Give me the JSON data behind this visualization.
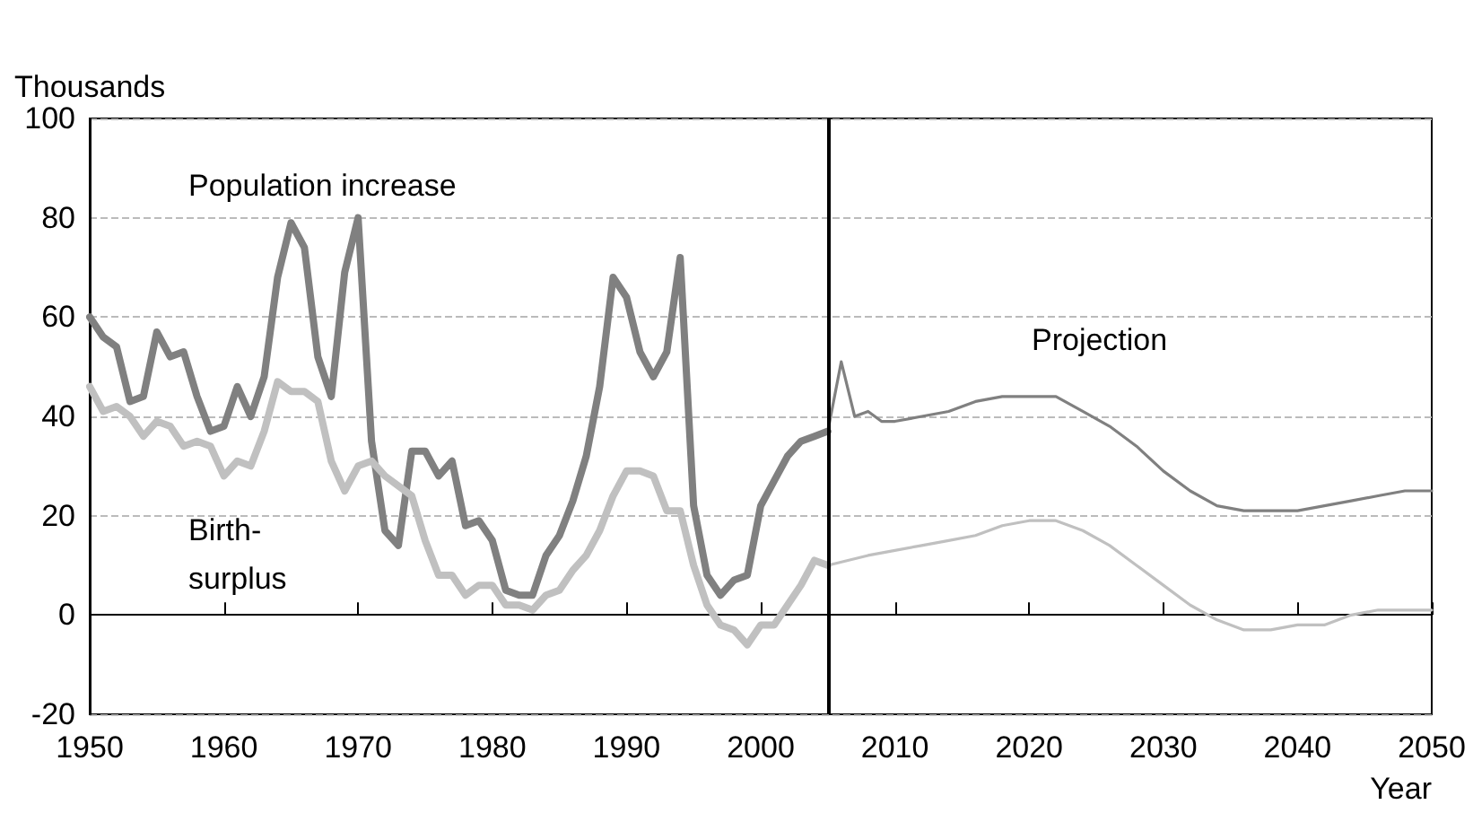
{
  "chart_data": {
    "type": "line",
    "ylabel": "Thousands",
    "xlabel": "Year",
    "series": [
      {
        "color": "#808080",
        "x": [
          1950,
          1951,
          1952,
          1953,
          1954,
          1955,
          1956,
          1957,
          1958,
          1959,
          1960,
          1961,
          1962,
          1963,
          1964,
          1965,
          1966,
          1967,
          1968,
          1969,
          1970,
          1971,
          1972,
          1973,
          1974,
          1975,
          1976,
          1977,
          1978,
          1979,
          1980,
          1981,
          1982,
          1983,
          1984,
          1985,
          1986,
          1987,
          1988,
          1989,
          1990,
          1991,
          1992,
          1993,
          1994,
          1995,
          1996,
          1997,
          1998,
          1999,
          2000,
          2001,
          2002,
          2003,
          2004,
          2005
        ],
        "values": [
          60,
          56,
          54,
          43,
          44,
          57,
          52,
          53,
          44,
          37,
          38,
          46,
          40,
          48,
          68,
          79,
          74,
          52,
          44,
          69,
          80,
          35,
          17,
          14,
          33,
          33,
          28,
          31,
          18,
          19,
          15,
          5,
          4,
          4,
          12,
          16,
          23,
          32,
          46,
          68,
          64,
          53,
          48,
          53,
          72,
          22,
          8,
          4,
          7,
          8,
          22,
          27,
          32,
          35,
          36,
          37
        ]
      },
      {
        "color": "#c0c0c0",
        "x": [
          1950,
          1951,
          1952,
          1953,
          1954,
          1955,
          1956,
          1957,
          1958,
          1959,
          1960,
          1961,
          1962,
          1963,
          1964,
          1965,
          1966,
          1967,
          1968,
          1969,
          1970,
          1971,
          1972,
          1973,
          1974,
          1975,
          1976,
          1977,
          1978,
          1979,
          1980,
          1981,
          1982,
          1983,
          1984,
          1985,
          1986,
          1987,
          1988,
          1989,
          1990,
          1991,
          1992,
          1993,
          1994,
          1995,
          1996,
          1997,
          1998,
          1999,
          2000,
          2001,
          2002,
          2003,
          2004,
          2005
        ],
        "values": [
          46,
          41,
          42,
          40,
          36,
          39,
          38,
          34,
          35,
          34,
          28,
          31,
          30,
          37,
          47,
          45,
          45,
          43,
          31,
          25,
          30,
          31,
          28,
          26,
          24,
          15,
          8,
          8,
          4,
          6,
          6,
          2,
          2,
          1,
          4,
          5,
          9,
          12,
          17,
          24,
          29,
          29,
          28,
          21,
          21,
          10,
          2,
          -2,
          -3,
          -6,
          -2,
          -2,
          2,
          6,
          11,
          10
        ]
      },
      {
        "color": "#808080",
        "x": [
          2005,
          2006,
          2007,
          2008,
          2009,
          2010,
          2012,
          2014,
          2016,
          2018,
          2020,
          2022,
          2024,
          2026,
          2028,
          2030,
          2032,
          2034,
          2036,
          2038,
          2040,
          2042,
          2044,
          2046,
          2048,
          2050
        ],
        "values": [
          37,
          51,
          40,
          41,
          39,
          39,
          40,
          41,
          43,
          44,
          44,
          44,
          41,
          38,
          34,
          29,
          25,
          22,
          21,
          21,
          21,
          22,
          23,
          24,
          25,
          25
        ]
      },
      {
        "color": "#c0c0c0",
        "x": [
          2005,
          2008,
          2010,
          2012,
          2014,
          2016,
          2018,
          2020,
          2022,
          2024,
          2026,
          2028,
          2030,
          2032,
          2034,
          2036,
          2038,
          2040,
          2042,
          2044,
          2046,
          2048,
          2050
        ],
        "values": [
          10,
          12,
          13,
          14,
          15,
          16,
          18,
          19,
          19,
          17,
          14,
          10,
          6,
          2,
          -1,
          -3,
          -3,
          -2,
          -2,
          0,
          1,
          1,
          1
        ]
      }
    ],
    "xlim": [
      1950,
      2050
    ],
    "xticks": [
      1950,
      1960,
      1970,
      1980,
      1990,
      2000,
      2010,
      2020,
      2030,
      2040,
      2050
    ],
    "ylim": [
      -20,
      100
    ],
    "yticks": [
      -20,
      0,
      20,
      40,
      60,
      80,
      100
    ],
    "grid": "y",
    "marker": "none",
    "line_style": "solid",
    "ref_lines": [
      {
        "axis": "x",
        "value": 2005,
        "color": "#000000"
      }
    ],
    "annotations": [
      "Population increase",
      "Birth-\nsurplus",
      "Projection"
    ]
  }
}
